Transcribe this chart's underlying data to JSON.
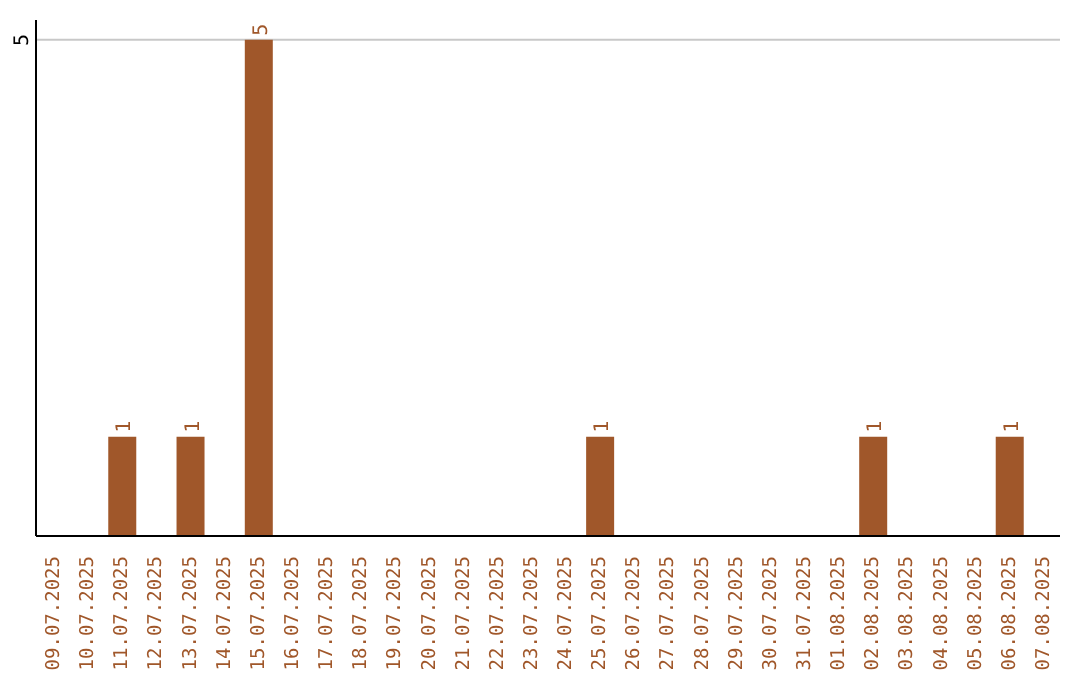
{
  "chart_data": {
    "type": "bar",
    "categories": [
      "09.07.2025",
      "10.07.2025",
      "11.07.2025",
      "12.07.2025",
      "13.07.2025",
      "14.07.2025",
      "15.07.2025",
      "16.07.2025",
      "17.07.2025",
      "18.07.2025",
      "19.07.2025",
      "20.07.2025",
      "21.07.2025",
      "22.07.2025",
      "23.07.2025",
      "24.07.2025",
      "25.07.2025",
      "26.07.2025",
      "27.07.2025",
      "28.07.2025",
      "29.07.2025",
      "30.07.2025",
      "31.07.2025",
      "01.08.2025",
      "02.08.2025",
      "03.08.2025",
      "04.08.2025",
      "05.08.2025",
      "06.08.2025",
      "07.08.2025"
    ],
    "values": [
      null,
      null,
      1,
      null,
      1,
      null,
      5,
      null,
      null,
      null,
      null,
      null,
      null,
      null,
      null,
      null,
      1,
      null,
      null,
      null,
      null,
      null,
      null,
      null,
      1,
      null,
      null,
      null,
      1,
      null
    ],
    "color": "#a0572a",
    "ylim": [
      0,
      5.2
    ],
    "yticks": [
      5
    ],
    "grid": "y",
    "data_labels": true,
    "legend": false
  }
}
